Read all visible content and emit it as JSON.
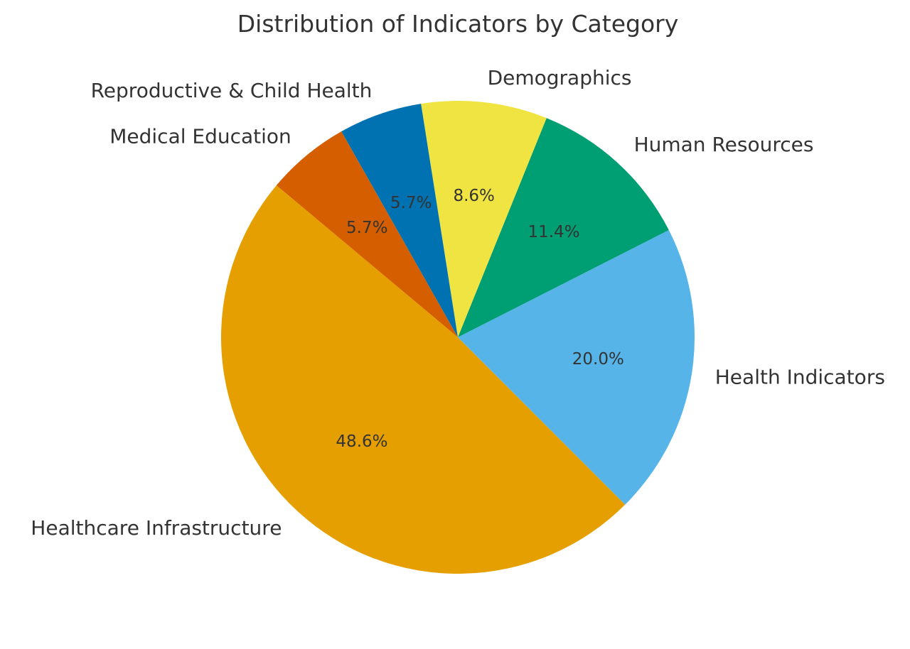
{
  "chart_data": {
    "type": "pie",
    "title": "Distribution of Indicators by Category",
    "slices": [
      {
        "label": "Healthcare Infrastructure",
        "value": 48.6,
        "pct_label": "48.6%",
        "color": "#E69F00"
      },
      {
        "label": "Health Indicators",
        "value": 20.0,
        "pct_label": "20.0%",
        "color": "#56B4E9"
      },
      {
        "label": "Human Resources",
        "value": 11.4,
        "pct_label": "11.4%",
        "color": "#009E73"
      },
      {
        "label": "Demographics",
        "value": 8.6,
        "pct_label": "8.6%",
        "color": "#F0E442"
      },
      {
        "label": "Reproductive & Child Health",
        "value": 5.7,
        "pct_label": "5.7%",
        "color": "#0072B2"
      },
      {
        "label": "Medical Education",
        "value": 5.7,
        "pct_label": "5.7%",
        "color": "#D55E00"
      }
    ],
    "start_angle_deg": 140,
    "direction": "counterclockwise",
    "legend": "none"
  }
}
